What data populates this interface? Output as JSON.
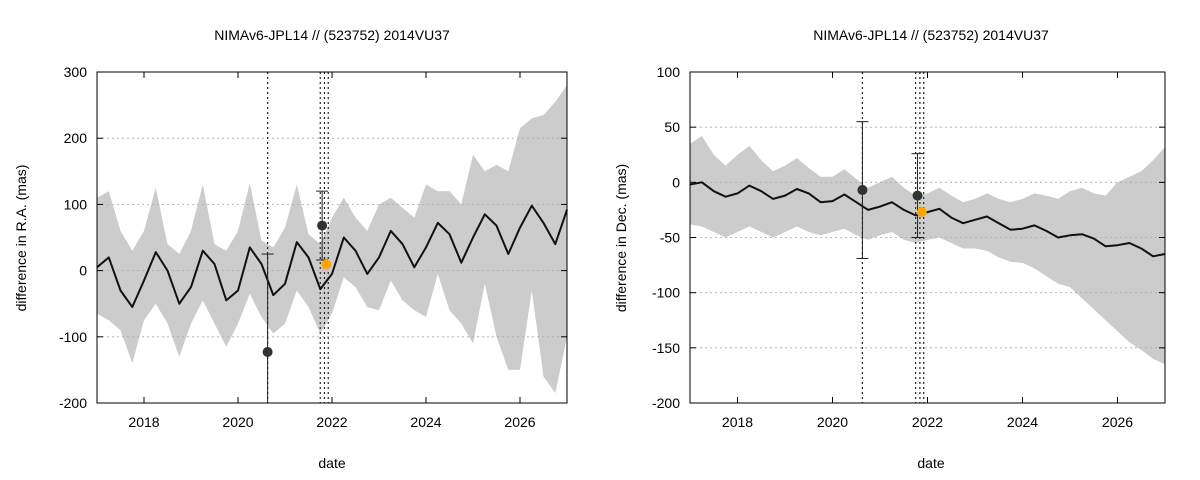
{
  "chart_data": [
    {
      "type": "line",
      "title": "NIMAv6-JPL14 // (523752) 2014VU37",
      "xlabel": "date",
      "ylabel": "difference in R.A. (mas)",
      "xlim": [
        2017.0,
        2027.0
      ],
      "ylim": [
        -200,
        300
      ],
      "xticks": [
        2018,
        2020,
        2022,
        2024,
        2026
      ],
      "yticks": [
        -200,
        -100,
        0,
        100,
        200,
        300
      ],
      "grid": "y-dotted",
      "band_color": "#cccccc",
      "curve_color": "#111111",
      "curve": {
        "x": [
          2017.0,
          2017.25,
          2017.5,
          2017.75,
          2018.0,
          2018.25,
          2018.5,
          2018.75,
          2019.0,
          2019.25,
          2019.5,
          2019.75,
          2020.0,
          2020.25,
          2020.5,
          2020.75,
          2021.0,
          2021.25,
          2021.5,
          2021.75,
          2022.0,
          2022.25,
          2022.5,
          2022.75,
          2023.0,
          2023.25,
          2023.5,
          2023.75,
          2024.0,
          2024.25,
          2024.5,
          2024.75,
          2025.0,
          2025.25,
          2025.5,
          2025.75,
          2026.0,
          2026.25,
          2026.5,
          2026.75,
          2027.0
        ],
        "y": [
          5,
          20,
          -30,
          -55,
          -15,
          28,
          0,
          -50,
          -25,
          30,
          10,
          -45,
          -30,
          35,
          10,
          -37,
          -20,
          43,
          20,
          -28,
          -5,
          50,
          30,
          -5,
          20,
          60,
          40,
          5,
          35,
          72,
          55,
          12,
          50,
          85,
          68,
          25,
          65,
          98,
          72,
          40,
          92
        ]
      },
      "band": {
        "x": [
          2017.0,
          2017.25,
          2017.5,
          2017.75,
          2018.0,
          2018.25,
          2018.5,
          2018.75,
          2019.0,
          2019.25,
          2019.5,
          2019.75,
          2020.0,
          2020.25,
          2020.5,
          2020.75,
          2021.0,
          2021.25,
          2021.5,
          2021.75,
          2022.0,
          2022.25,
          2022.5,
          2022.75,
          2023.0,
          2023.25,
          2023.5,
          2023.75,
          2024.0,
          2024.25,
          2024.5,
          2024.75,
          2025.0,
          2025.25,
          2025.5,
          2025.75,
          2026.0,
          2026.25,
          2026.5,
          2026.75,
          2027.0
        ],
        "upper": [
          110,
          120,
          60,
          30,
          60,
          125,
          40,
          25,
          60,
          130,
          40,
          30,
          60,
          132,
          45,
          35,
          65,
          130,
          55,
          40,
          80,
          110,
          80,
          60,
          100,
          110,
          95,
          80,
          130,
          120,
          120,
          100,
          175,
          150,
          160,
          150,
          215,
          230,
          235,
          255,
          280
        ],
        "lower": [
          -65,
          -75,
          -90,
          -140,
          -75,
          -50,
          -80,
          -130,
          -80,
          -45,
          -80,
          -115,
          -80,
          -35,
          -70,
          -95,
          -80,
          -30,
          -55,
          -95,
          -65,
          -10,
          -25,
          -55,
          -60,
          -15,
          -45,
          -60,
          -70,
          -5,
          -60,
          -80,
          -110,
          -20,
          -100,
          -150,
          -150,
          -30,
          -160,
          -185,
          -100
        ]
      },
      "vertical_markers_x": [
        2020.63,
        2021.75,
        2021.84,
        2021.92
      ],
      "points": [
        {
          "x": 2020.63,
          "y": -123,
          "err": 148,
          "color": "#333333"
        },
        {
          "x": 2021.79,
          "y": 68,
          "err": 52,
          "color": "#333333"
        },
        {
          "x": 2021.88,
          "y": 9,
          "err": 0,
          "color": "#ffa500"
        }
      ]
    },
    {
      "type": "line",
      "title": "NIMAv6-JPL14 // (523752) 2014VU37",
      "xlabel": "date",
      "ylabel": "difference in Dec. (mas)",
      "xlim": [
        2017.0,
        2027.0
      ],
      "ylim": [
        -200,
        100
      ],
      "xticks": [
        2018,
        2020,
        2022,
        2024,
        2026
      ],
      "yticks": [
        -200,
        -150,
        -100,
        -50,
        0,
        50,
        100
      ],
      "grid": "y-dotted",
      "band_color": "#cccccc",
      "curve_color": "#111111",
      "curve": {
        "x": [
          2017.0,
          2017.25,
          2017.5,
          2017.75,
          2018.0,
          2018.25,
          2018.5,
          2018.75,
          2019.0,
          2019.25,
          2019.5,
          2019.75,
          2020.0,
          2020.25,
          2020.5,
          2020.75,
          2021.0,
          2021.25,
          2021.5,
          2021.75,
          2022.0,
          2022.25,
          2022.5,
          2022.75,
          2023.0,
          2023.25,
          2023.5,
          2023.75,
          2024.0,
          2024.25,
          2024.5,
          2024.75,
          2025.0,
          2025.25,
          2025.5,
          2025.75,
          2026.0,
          2026.25,
          2026.5,
          2026.75,
          2027.0
        ],
        "y": [
          -2,
          0,
          -8,
          -13,
          -10,
          -3,
          -8,
          -15,
          -12,
          -6,
          -10,
          -18,
          -17,
          -11,
          -18,
          -25,
          -22,
          -18,
          -25,
          -30,
          -27,
          -24,
          -32,
          -37,
          -34,
          -31,
          -37,
          -43,
          -42,
          -39,
          -44,
          -50,
          -48,
          -47,
          -51,
          -58,
          -57,
          -55,
          -60,
          -67,
          -65
        ]
      },
      "band": {
        "x": [
          2017.0,
          2017.25,
          2017.5,
          2017.75,
          2018.0,
          2018.25,
          2018.5,
          2018.75,
          2019.0,
          2019.25,
          2019.5,
          2019.75,
          2020.0,
          2020.25,
          2020.5,
          2020.75,
          2021.0,
          2021.25,
          2021.5,
          2021.75,
          2022.0,
          2022.25,
          2022.5,
          2022.75,
          2023.0,
          2023.25,
          2023.5,
          2023.75,
          2024.0,
          2024.25,
          2024.5,
          2024.75,
          2025.0,
          2025.25,
          2025.5,
          2025.75,
          2026.0,
          2026.25,
          2026.5,
          2026.75,
          2027.0
        ],
        "upper": [
          35,
          42,
          25,
          15,
          25,
          33,
          20,
          10,
          15,
          22,
          13,
          5,
          5,
          12,
          3,
          -5,
          0,
          5,
          -5,
          -12,
          -10,
          -5,
          -12,
          -18,
          -15,
          -10,
          -15,
          -18,
          -15,
          -10,
          -12,
          -15,
          -8,
          -5,
          -10,
          -12,
          0,
          5,
          10,
          20,
          32
        ],
        "lower": [
          -38,
          -40,
          -45,
          -50,
          -45,
          -40,
          -45,
          -50,
          -45,
          -40,
          -45,
          -48,
          -45,
          -42,
          -48,
          -52,
          -48,
          -45,
          -52,
          -55,
          -52,
          -50,
          -55,
          -60,
          -60,
          -62,
          -68,
          -72,
          -73,
          -78,
          -85,
          -92,
          -95,
          -105,
          -115,
          -125,
          -135,
          -145,
          -152,
          -160,
          -165
        ]
      },
      "vertical_markers_x": [
        2020.63,
        2021.75,
        2021.84,
        2021.92
      ],
      "points": [
        {
          "x": 2020.63,
          "y": -7,
          "err": 62,
          "color": "#333333"
        },
        {
          "x": 2021.79,
          "y": -12,
          "err": 38,
          "color": "#333333"
        },
        {
          "x": 2021.88,
          "y": -27,
          "err": 0,
          "color": "#ffa500"
        }
      ]
    }
  ]
}
